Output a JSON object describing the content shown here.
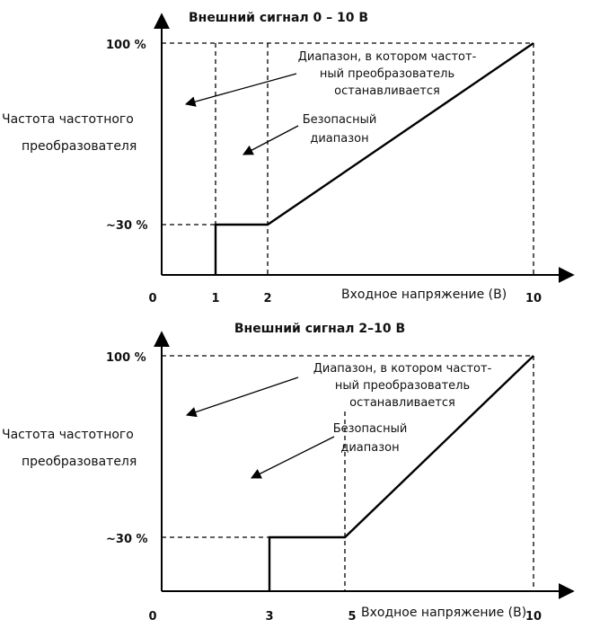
{
  "chart_data": [
    {
      "type": "line",
      "title": "Внешний сигнал 0 – 10 В",
      "ylabel_lines": [
        "Частота частотного",
        "преобразователя"
      ],
      "xlabel": "Входное напряжение (В)",
      "ytick_top": "100 %",
      "ytick_low": "~30 %",
      "xticks": [
        "0",
        "1",
        "2",
        "10"
      ],
      "x": [
        1,
        1,
        2,
        10
      ],
      "y": [
        0,
        30,
        30,
        100
      ],
      "stop_note": [
        "Диапазон, в котором частот-",
        "ный преобразователь",
        "останавливается"
      ],
      "safe_note": [
        "Безопасный",
        "диапазон"
      ]
    },
    {
      "type": "line",
      "title": "Внешний сигнал 2–10 В",
      "ylabel_lines": [
        "Частота частотного",
        "преобразователя"
      ],
      "xlabel": "Входное напряжение (В)",
      "ytick_top": "100 %",
      "ytick_low": "~30 %",
      "xticks": [
        "0",
        "3",
        "5",
        "10"
      ],
      "x": [
        3,
        3,
        5,
        10
      ],
      "y": [
        0,
        30,
        30,
        100
      ],
      "stop_note": [
        "Диапазон, в котором частот-",
        "ный преобразователь",
        "останавливается"
      ],
      "safe_note": [
        "Безопасный",
        "диапазон"
      ]
    }
  ]
}
